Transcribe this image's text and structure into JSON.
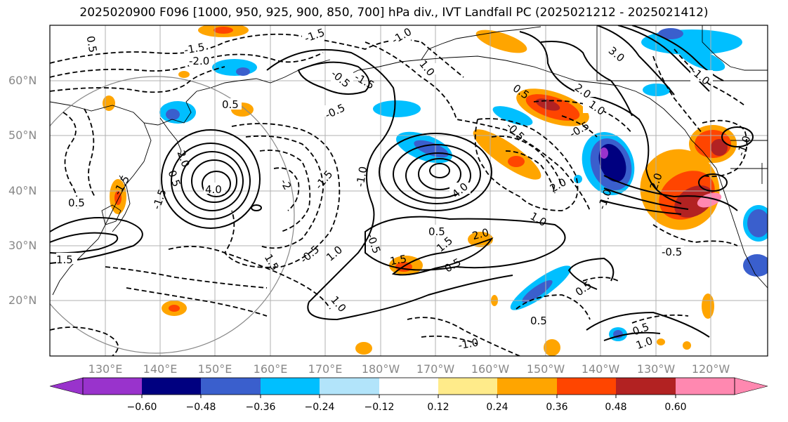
{
  "title": "2025020900 F096 [1000, 950, 925, 900, 850, 700] hPa div., IVT Landfall PC (2025021212 - 2025021412)",
  "map": {
    "lat_labels": [
      "60°N",
      "50°N",
      "40°N",
      "30°N",
      "20°N"
    ],
    "lon_labels": [
      "130°E",
      "140°E",
      "150°E",
      "160°E",
      "170°E",
      "180°W",
      "170°W",
      "160°W",
      "150°W",
      "140°W",
      "130°W",
      "120°W"
    ],
    "contour_labels": [
      "0.5",
      "-1.5",
      "-2.0",
      "-1.0",
      "0.5",
      "-1.5",
      "-0.5",
      "1.0",
      "-1.5",
      "3.0",
      "2.0",
      "1.0",
      "-1.0",
      "0.5",
      "-0.5",
      "-0.5",
      "-1.0",
      "-0.5",
      "0.5",
      "1.5",
      "-1.5",
      "2.0",
      "-1.5",
      "4.0",
      "4.0",
      "-2",
      "-1.5",
      "-1.0",
      "0.5",
      "2.0",
      "-1.0",
      "2.0",
      "1.5",
      "1.0",
      "-0.5",
      "-0.5",
      "1.0",
      "1.5",
      "0.5",
      "1.0",
      "2.0",
      "0.5",
      "1.5",
      "-0.5",
      "0.5",
      "-1.0",
      "0.5",
      "-0.5",
      "1.0"
    ]
  },
  "colorbar": {
    "ticks": [
      "−0.60",
      "−0.48",
      "−0.36",
      "−0.24",
      "−0.12",
      "0.12",
      "0.24",
      "0.36",
      "0.48",
      "0.60"
    ],
    "colors": [
      "#9933cc",
      "#000080",
      "#3a5fcd",
      "#00bfff",
      "#b2e4fa",
      "#ffffff",
      "#ffeb8a",
      "#ffa500",
      "#ff4500",
      "#b22222",
      "#ff88b0"
    ]
  }
}
